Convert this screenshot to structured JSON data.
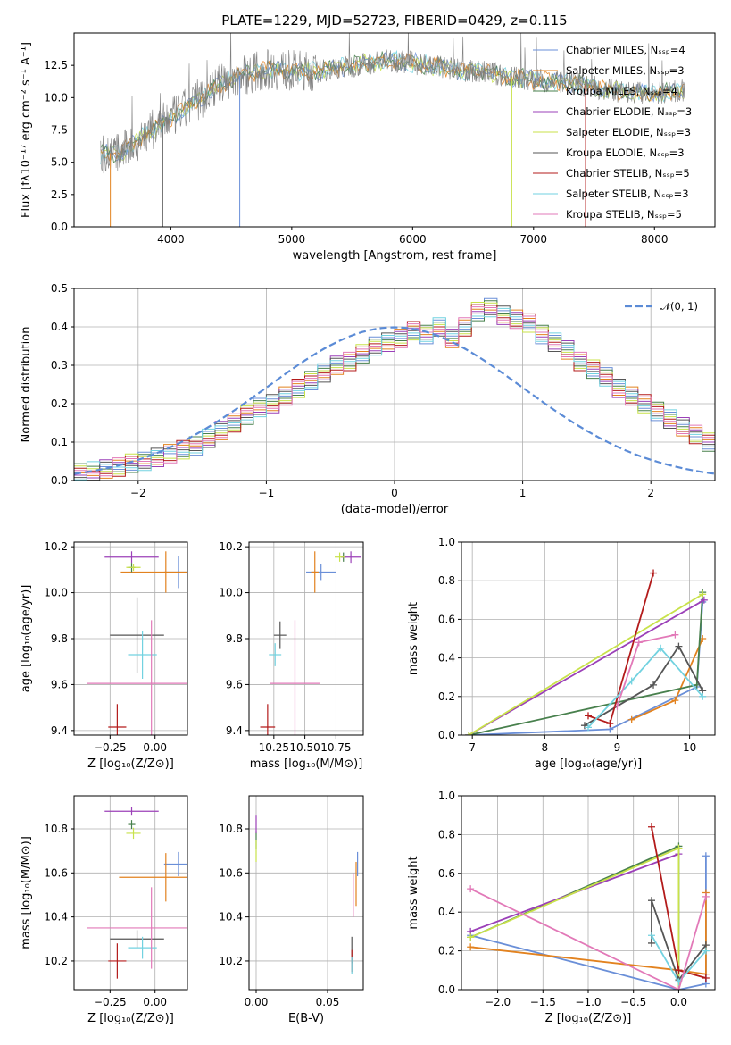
{
  "title": "PLATE=1229, MJD=52723, FIBERID=0429, z=0.115",
  "colors": {
    "series": [
      "#6a8fd8",
      "#e2821f",
      "#48804d",
      "#9b40b8",
      "#c8e24a",
      "#555555",
      "#b31b1b",
      "#72d2e0",
      "#e279b8"
    ],
    "data": "#808080"
  },
  "chart_data": [
    {
      "id": "spectrum",
      "type": "line",
      "title": "PLATE=1229, MJD=52723, FIBERID=0429, z=0.115",
      "xlabel": "wavelength [Angstrom, rest frame]",
      "ylabel": "Flux [fλ10⁻¹⁷ erg cm⁻² s⁻¹ A⁻¹]",
      "xlim": [
        3200,
        8500
      ],
      "ylim": [
        0,
        15
      ],
      "xticks": [
        {
          "v": 4000,
          "t": "4000"
        },
        {
          "v": 5000,
          "t": "5000"
        },
        {
          "v": 6000,
          "t": "6000"
        },
        {
          "v": 7000,
          "t": "7000"
        },
        {
          "v": 8000,
          "t": "8000"
        }
      ],
      "yticks": [
        {
          "v": 0,
          "t": "0.0"
        },
        {
          "v": 2.5,
          "t": "2.5"
        },
        {
          "v": 5,
          "t": "5.0"
        },
        {
          "v": 7.5,
          "t": "7.5"
        },
        {
          "v": 10,
          "t": "10.0"
        },
        {
          "v": 12.5,
          "t": "12.5"
        }
      ],
      "legend": [
        "Chabrier MILES, Nₛₛₚ=4",
        "Salpeter MILES, Nₛₛₚ=3",
        "Kroupa MILES, Nₛₛₚ=4",
        "Chabrier ELODIE, Nₛₛₚ=3",
        "Salpeter ELODIE, Nₛₛₚ=3",
        "Kroupa ELODIE, Nₛₛₚ=3",
        "Chabrier STELIB, Nₛₛₚ=5",
        "Salpeter STELIB, Nₛₛₚ=3",
        "Kroupa STELIB, Nₛₛₚ=5"
      ],
      "continuum": [
        [
          3400,
          5.6
        ],
        [
          3600,
          5.8
        ],
        [
          3800,
          7.2
        ],
        [
          4000,
          8.4
        ],
        [
          4200,
          9.6
        ],
        [
          4400,
          11.0
        ],
        [
          4600,
          11.8
        ],
        [
          4800,
          12.2
        ],
        [
          5000,
          12.1
        ],
        [
          5200,
          12.0
        ],
        [
          5400,
          12.3
        ],
        [
          5600,
          12.6
        ],
        [
          5800,
          12.9
        ],
        [
          6000,
          12.7
        ],
        [
          6200,
          12.4
        ],
        [
          6400,
          12.1
        ],
        [
          6600,
          12.0
        ],
        [
          6800,
          11.6
        ],
        [
          7000,
          11.4
        ],
        [
          7200,
          11.2
        ],
        [
          7400,
          11.0
        ],
        [
          7600,
          10.6
        ],
        [
          7800,
          10.4
        ],
        [
          8000,
          10.3
        ],
        [
          8200,
          10.5
        ]
      ],
      "dips": [
        [
          3500,
          0
        ],
        [
          3933,
          0
        ],
        [
          4570,
          0
        ],
        [
          6820,
          0
        ],
        [
          7430,
          0
        ]
      ]
    },
    {
      "id": "residuals",
      "type": "area",
      "xlabel": "(data-model)/error",
      "ylabel": "Normed distribution",
      "xlim": [
        -2.5,
        2.5
      ],
      "ylim": [
        0,
        0.5
      ],
      "xticks": [
        {
          "v": -2,
          "t": "−2"
        },
        {
          "v": -1,
          "t": "−1"
        },
        {
          "v": 0,
          "t": "0"
        },
        {
          "v": 1,
          "t": "1"
        },
        {
          "v": 2,
          "t": "2"
        }
      ],
      "yticks": [
        {
          "v": 0,
          "t": "0.0"
        },
        {
          "v": 0.1,
          "t": "0.1"
        },
        {
          "v": 0.2,
          "t": "0.2"
        },
        {
          "v": 0.3,
          "t": "0.3"
        },
        {
          "v": 0.4,
          "t": "0.4"
        },
        {
          "v": 0.5,
          "t": "0.5"
        }
      ],
      "legend": "𝒩(0, 1)",
      "bin_width": 0.1,
      "hist": [
        0.02,
        0.025,
        0.03,
        0.035,
        0.045,
        0.05,
        0.06,
        0.07,
        0.08,
        0.09,
        0.11,
        0.13,
        0.15,
        0.17,
        0.19,
        0.2,
        0.22,
        0.24,
        0.26,
        0.28,
        0.3,
        0.31,
        0.33,
        0.35,
        0.36,
        0.37,
        0.39,
        0.38,
        0.4,
        0.37,
        0.4,
        0.44,
        0.45,
        0.43,
        0.42,
        0.41,
        0.38,
        0.36,
        0.34,
        0.31,
        0.29,
        0.27,
        0.24,
        0.22,
        0.2,
        0.18,
        0.16,
        0.14,
        0.12,
        0.1
      ]
    },
    {
      "id": "age-vs-Z",
      "type": "scatter",
      "xlabel": "Z [log₁₀(Z/Z⊙)]",
      "ylabel": "age  [log₁₀(age/yr)]",
      "xlim": [
        -0.45,
        0.18
      ],
      "ylim": [
        9.38,
        10.22
      ],
      "xticks": [
        {
          "v": -0.25,
          "t": "−0.25"
        },
        {
          "v": 0,
          "t": "0.00"
        }
      ],
      "yticks": [
        {
          "v": 9.4,
          "t": "9.4"
        },
        {
          "v": 9.6,
          "t": "9.6"
        },
        {
          "v": 9.8,
          "t": "9.8"
        },
        {
          "v": 10.0,
          "t": "10.0"
        },
        {
          "v": 10.2,
          "t": "10.2"
        }
      ],
      "points": [
        {
          "s": 0,
          "x": 0.13,
          "y": 10.09,
          "xe": 0.08,
          "ye": 0.14
        },
        {
          "s": 1,
          "x": 0.06,
          "y": 10.09,
          "xe": 0.25,
          "ye": 0.18
        },
        {
          "s": 2,
          "x": -0.13,
          "y": 10.11,
          "xe": 0.02,
          "ye": 0.04
        },
        {
          "s": 3,
          "x": -0.13,
          "y": 10.155,
          "xe": 0.15,
          "ye": 0.05
        },
        {
          "s": 4,
          "x": -0.12,
          "y": 10.11,
          "xe": 0.04,
          "ye": 0.03
        },
        {
          "s": 5,
          "x": -0.1,
          "y": 9.815,
          "xe": 0.15,
          "ye": 0.33
        },
        {
          "s": 6,
          "x": -0.21,
          "y": 9.415,
          "xe": 0.05,
          "ye": 0.2
        },
        {
          "s": 7,
          "x": -0.07,
          "y": 9.73,
          "xe": 0.08,
          "ye": 0.21
        },
        {
          "s": 8,
          "x": -0.02,
          "y": 9.605,
          "xe": 0.36,
          "ye": 0.55
        }
      ]
    },
    {
      "id": "age-vs-mass",
      "type": "scatter",
      "xlabel": "mass [log₁₀(M/M⊙)]",
      "xlim": [
        10.05,
        10.97
      ],
      "ylim": [
        9.38,
        10.22
      ],
      "xticks": [
        {
          "v": 10.25,
          "t": "10.25"
        },
        {
          "v": 10.5,
          "t": "10.50"
        },
        {
          "v": 10.75,
          "t": "10.75"
        }
      ],
      "yticks": [
        {
          "v": 9.4,
          "t": "9.4"
        },
        {
          "v": 9.6,
          "t": "9.6"
        },
        {
          "v": 9.8,
          "t": "9.8"
        },
        {
          "v": 10.0,
          "t": "10.0"
        },
        {
          "v": 10.2,
          "t": "10.2"
        }
      ],
      "points": [
        {
          "s": 0,
          "x": 10.63,
          "y": 10.09,
          "xe": 0.12,
          "ye": 0.07
        },
        {
          "s": 1,
          "x": 10.58,
          "y": 10.09,
          "xe": 0.03,
          "ye": 0.18
        },
        {
          "s": 2,
          "x": 10.81,
          "y": 10.155,
          "xe": 0.02,
          "ye": 0.04
        },
        {
          "s": 3,
          "x": 10.87,
          "y": 10.155,
          "xe": 0.08,
          "ye": 0.05
        },
        {
          "s": 4,
          "x": 10.78,
          "y": 10.155,
          "xe": 0.04,
          "ye": 0.04
        },
        {
          "s": 5,
          "x": 10.3,
          "y": 9.815,
          "xe": 0.05,
          "ye": 0.12
        },
        {
          "s": 6,
          "x": 10.2,
          "y": 9.415,
          "xe": 0.06,
          "ye": 0.2
        },
        {
          "s": 7,
          "x": 10.26,
          "y": 9.73,
          "xe": 0.05,
          "ye": 0.1
        },
        {
          "s": 8,
          "x": 10.42,
          "y": 9.605,
          "xe": 0.2,
          "ye": 0.55
        }
      ]
    },
    {
      "id": "massweight-vs-age",
      "type": "line",
      "xlabel": "age  [log₁₀(age/yr)]",
      "ylabel": "mass weight",
      "xlim": [
        6.85,
        10.35
      ],
      "ylim": [
        0,
        1
      ],
      "xticks": [
        {
          "v": 7,
          "t": "7"
        },
        {
          "v": 8,
          "t": "8"
        },
        {
          "v": 9,
          "t": "9"
        },
        {
          "v": 10,
          "t": "10"
        }
      ],
      "yticks": [
        {
          "v": 0,
          "t": "0.0"
        },
        {
          "v": 0.2,
          "t": "0.2"
        },
        {
          "v": 0.4,
          "t": "0.4"
        },
        {
          "v": 0.6,
          "t": "0.6"
        },
        {
          "v": 0.8,
          "t": "0.8"
        },
        {
          "v": 1,
          "t": "1.0"
        }
      ],
      "series": [
        {
          "s": 0,
          "x": [
            6.95,
            8.9,
            10.1,
            10.18
          ],
          "y": [
            0,
            0.03,
            0.25,
            0.69
          ]
        },
        {
          "s": 1,
          "x": [
            9.2,
            9.8,
            10.18
          ],
          "y": [
            0.08,
            0.18,
            0.5
          ]
        },
        {
          "s": 2,
          "x": [
            6.95,
            10.1,
            10.18
          ],
          "y": [
            0,
            0.26,
            0.74
          ]
        },
        {
          "s": 3,
          "x": [
            6.95,
            10.2
          ],
          "y": [
            0,
            0.7
          ]
        },
        {
          "s": 4,
          "x": [
            6.95,
            10.18
          ],
          "y": [
            0,
            0.73
          ]
        },
        {
          "s": 5,
          "x": [
            8.55,
            9.5,
            9.85,
            10.18
          ],
          "y": [
            0.05,
            0.26,
            0.46,
            0.23
          ]
        },
        {
          "s": 6,
          "x": [
            8.6,
            8.9,
            9.5
          ],
          "y": [
            0.1,
            0.06,
            0.84
          ]
        },
        {
          "s": 7,
          "x": [
            8.6,
            9.2,
            9.6,
            10.18
          ],
          "y": [
            0.04,
            0.28,
            0.45,
            0.2
          ]
        },
        {
          "s": 8,
          "x": [
            9.0,
            9.3,
            9.8
          ],
          "y": [
            0.15,
            0.48,
            0.52
          ]
        }
      ]
    },
    {
      "id": "mass-vs-Z",
      "type": "scatter",
      "xlabel": "Z [log₁₀(Z/Z⊙)]",
      "ylabel": "mass [log₁₀(M/M⊙)]",
      "xlim": [
        -0.45,
        0.18
      ],
      "ylim": [
        10.07,
        10.95
      ],
      "xticks": [
        {
          "v": -0.25,
          "t": "−0.25"
        },
        {
          "v": 0,
          "t": "0.00"
        }
      ],
      "yticks": [
        {
          "v": 10.2,
          "t": "10.2"
        },
        {
          "v": 10.4,
          "t": "10.4"
        },
        {
          "v": 10.6,
          "t": "10.6"
        },
        {
          "v": 10.8,
          "t": "10.8"
        }
      ],
      "points": [
        {
          "s": 0,
          "x": 0.13,
          "y": 10.64,
          "xe": 0.08,
          "ye": 0.11
        },
        {
          "s": 1,
          "x": 0.06,
          "y": 10.58,
          "xe": 0.26,
          "ye": 0.22
        },
        {
          "s": 2,
          "x": -0.13,
          "y": 10.82,
          "xe": 0.02,
          "ye": 0.04
        },
        {
          "s": 3,
          "x": -0.13,
          "y": 10.88,
          "xe": 0.15,
          "ye": 0.04
        },
        {
          "s": 4,
          "x": -0.12,
          "y": 10.78,
          "xe": 0.04,
          "ye": 0.05
        },
        {
          "s": 5,
          "x": -0.1,
          "y": 10.3,
          "xe": 0.15,
          "ye": 0.08
        },
        {
          "s": 6,
          "x": -0.21,
          "y": 10.2,
          "xe": 0.05,
          "ye": 0.16
        },
        {
          "s": 7,
          "x": -0.07,
          "y": 10.26,
          "xe": 0.08,
          "ye": 0.1
        },
        {
          "s": 8,
          "x": -0.02,
          "y": 10.35,
          "xe": 0.36,
          "ye": 0.37
        }
      ]
    },
    {
      "id": "mass-vs-EBV",
      "type": "scatter",
      "xlabel": "E(B-V)",
      "xlim": [
        -0.005,
        0.075
      ],
      "ylim": [
        10.07,
        10.95
      ],
      "xticks": [
        {
          "v": 0,
          "t": "0.00"
        },
        {
          "v": 0.05,
          "t": "0.05"
        }
      ],
      "yticks": [
        {
          "v": 10.2,
          "t": "10.2"
        },
        {
          "v": 10.4,
          "t": "10.4"
        },
        {
          "v": 10.6,
          "t": "10.6"
        },
        {
          "v": 10.8,
          "t": "10.8"
        }
      ],
      "points": [
        {
          "s": 0,
          "x": 0.071,
          "y": 10.64,
          "xe": 0.0,
          "ye": 0.11
        },
        {
          "s": 1,
          "x": 0.07,
          "y": 10.55,
          "xe": 0.0,
          "ye": 0.2
        },
        {
          "s": 2,
          "x": 0.0,
          "y": 10.75,
          "xe": 0.0,
          "ye": 0.08
        },
        {
          "s": 3,
          "x": 0.0,
          "y": 10.82,
          "xe": 0.0,
          "ye": 0.08
        },
        {
          "s": 4,
          "x": 0.0,
          "y": 10.7,
          "xe": 0.0,
          "ye": 0.1
        },
        {
          "s": 5,
          "x": 0.067,
          "y": 10.25,
          "xe": 0.0,
          "ye": 0.12
        },
        {
          "s": 6,
          "x": 0.067,
          "y": 10.2,
          "xe": 0.0,
          "ye": 0.1
        },
        {
          "s": 7,
          "x": 0.067,
          "y": 10.18,
          "xe": 0.0,
          "ye": 0.08
        },
        {
          "s": 8,
          "x": 0.068,
          "y": 10.5,
          "xe": 0.0,
          "ye": 0.2
        }
      ]
    },
    {
      "id": "massweight-vs-Z",
      "type": "line",
      "xlabel": "Z [log₁₀(Z/Z⊙)]",
      "ylabel": "mass weight",
      "xlim": [
        -2.4,
        0.4
      ],
      "ylim": [
        0,
        1
      ],
      "xticks": [
        {
          "v": -2.0,
          "t": "−2.0"
        },
        {
          "v": -1.5,
          "t": "−1.5"
        },
        {
          "v": -1.0,
          "t": "−1.0"
        },
        {
          "v": -0.5,
          "t": "−0.5"
        },
        {
          "v": 0,
          "t": "0.0"
        }
      ],
      "yticks": [
        {
          "v": 0,
          "t": "0.0"
        },
        {
          "v": 0.2,
          "t": "0.2"
        },
        {
          "v": 0.4,
          "t": "0.4"
        },
        {
          "v": 0.6,
          "t": "0.6"
        },
        {
          "v": 0.8,
          "t": "0.8"
        },
        {
          "v": 1,
          "t": "1.0"
        }
      ],
      "series": [
        {
          "s": 0,
          "x": [
            -2.3,
            0.0,
            0.3,
            0.3
          ],
          "y": [
            0.28,
            0.0,
            0.03,
            0.69
          ]
        },
        {
          "s": 1,
          "x": [
            -2.3,
            0.0,
            0.3,
            0.3
          ],
          "y": [
            0.22,
            0.1,
            0.08,
            0.5
          ]
        },
        {
          "s": 2,
          "x": [
            -2.3,
            0.0,
            0.0
          ],
          "y": [
            0.27,
            0.74,
            0.0
          ]
        },
        {
          "s": 3,
          "x": [
            -2.3,
            0.0
          ],
          "y": [
            0.3,
            0.7
          ]
        },
        {
          "s": 4,
          "x": [
            -2.3,
            0.0,
            0.0
          ],
          "y": [
            0.27,
            0.73,
            0.0
          ]
        },
        {
          "s": 5,
          "x": [
            -0.3,
            -0.3,
            0.0,
            0.3
          ],
          "y": [
            0.24,
            0.46,
            0.05,
            0.23
          ]
        },
        {
          "s": 6,
          "x": [
            -0.3,
            0.0,
            0.3
          ],
          "y": [
            0.84,
            0.1,
            0.06
          ]
        },
        {
          "s": 7,
          "x": [
            -0.3,
            0.0,
            0.3
          ],
          "y": [
            0.28,
            0.04,
            0.2
          ]
        },
        {
          "s": 8,
          "x": [
            -2.3,
            0.0,
            0.3
          ],
          "y": [
            0.52,
            0.0,
            0.48
          ]
        }
      ]
    }
  ]
}
